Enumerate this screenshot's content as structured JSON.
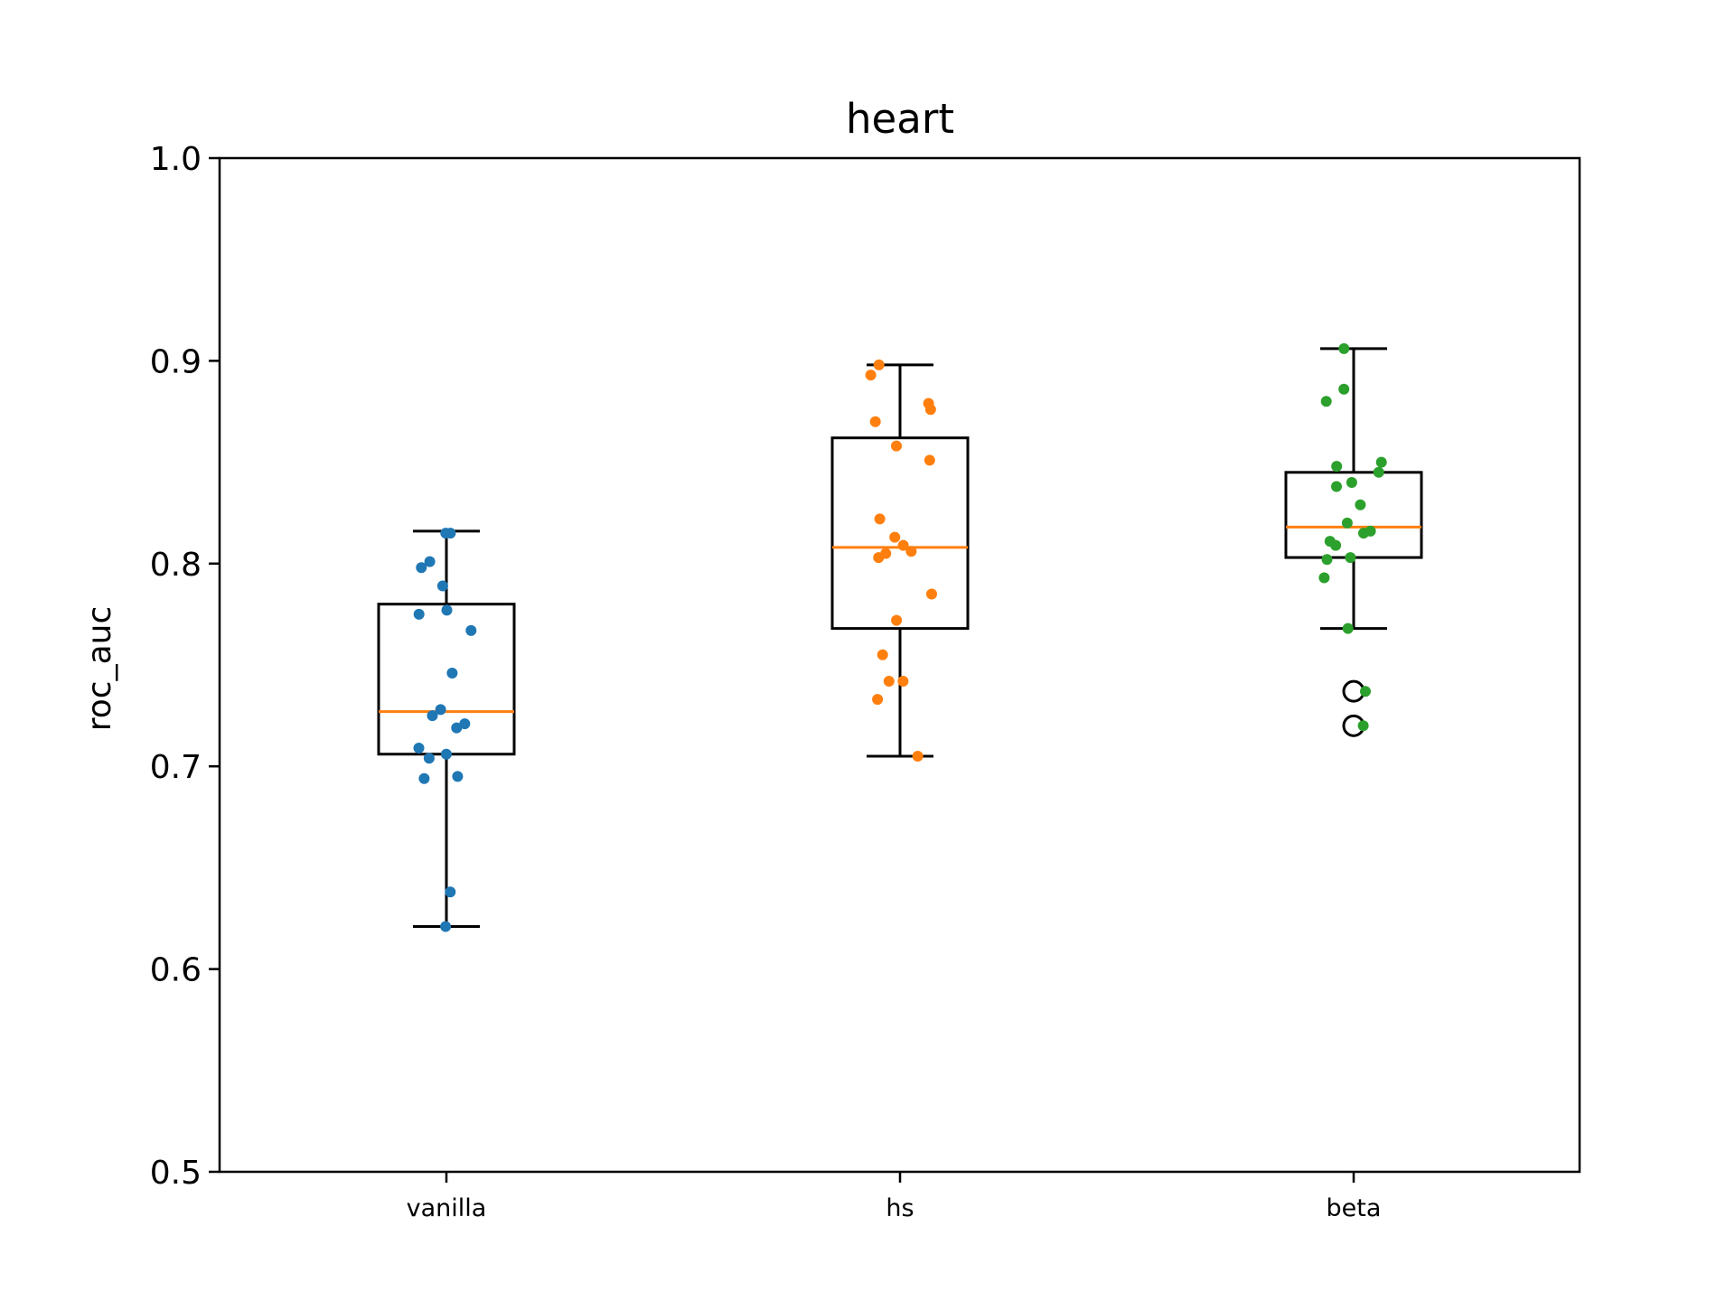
{
  "chart_data": {
    "type": "boxplot",
    "title": "heart",
    "xlabel": "",
    "ylabel": "roc_auc",
    "ylim": [
      0.5,
      1.0
    ],
    "yticks": [
      "0.5",
      "0.6",
      "0.7",
      "0.8",
      "0.9",
      "1.0"
    ],
    "categories": [
      "vanilla",
      "hs",
      "beta"
    ],
    "grid": false,
    "legend": "none",
    "colors": {
      "vanilla": "#1f77b4",
      "hs": "#ff7f0e",
      "beta": "#2ca02c",
      "median": "#ff7f0e",
      "box": "#000000"
    },
    "boxes": [
      {
        "name": "vanilla",
        "whisker_low": 0.621,
        "q1": 0.706,
        "median": 0.727,
        "q3": 0.78,
        "whisker_high": 0.816,
        "outliers": []
      },
      {
        "name": "hs",
        "whisker_low": 0.705,
        "q1": 0.768,
        "median": 0.808,
        "q3": 0.862,
        "whisker_high": 0.898,
        "outliers": []
      },
      {
        "name": "beta",
        "whisker_low": 0.768,
        "q1": 0.803,
        "median": 0.818,
        "q3": 0.845,
        "whisker_high": 0.906,
        "outliers": [
          0.737,
          0.72
        ]
      }
    ],
    "points": [
      {
        "category": "vanilla",
        "values": [
          0.815,
          0.815,
          0.798,
          0.801,
          0.789,
          0.777,
          0.775,
          0.767,
          0.746,
          0.728,
          0.725,
          0.721,
          0.719,
          0.709,
          0.706,
          0.704,
          0.695,
          0.694,
          0.638,
          0.621
        ]
      },
      {
        "category": "hs",
        "values": [
          0.898,
          0.893,
          0.879,
          0.876,
          0.87,
          0.858,
          0.851,
          0.822,
          0.813,
          0.809,
          0.806,
          0.805,
          0.803,
          0.785,
          0.772,
          0.755,
          0.742,
          0.742,
          0.733,
          0.705
        ]
      },
      {
        "category": "beta",
        "values": [
          0.906,
          0.886,
          0.88,
          0.85,
          0.848,
          0.845,
          0.84,
          0.838,
          0.829,
          0.82,
          0.816,
          0.815,
          0.811,
          0.809,
          0.803,
          0.802,
          0.793,
          0.768,
          0.737,
          0.72
        ]
      }
    ]
  }
}
